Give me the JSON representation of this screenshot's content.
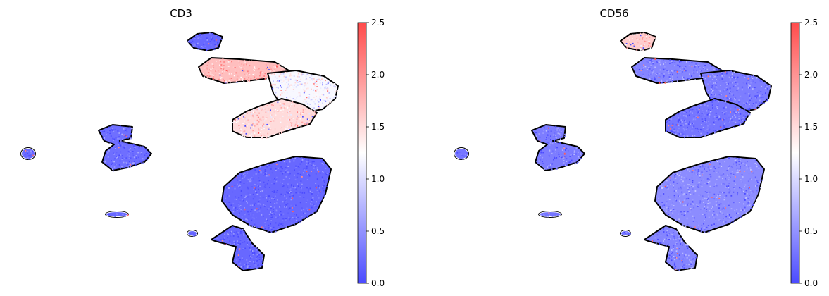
{
  "colormap": {
    "name": "bwr",
    "low": "#4b4bff",
    "mid": "#ffffff",
    "high": "#ff4b4b",
    "outline": "#000000"
  },
  "chart_data": [
    {
      "type": "scatter",
      "title": "CD3",
      "xlabel": "",
      "ylabel": "",
      "grid": false,
      "colorbar": {
        "vmin": 0.0,
        "vmax": 2.5,
        "ticks": [
          "0.0",
          "0.5",
          "1.0",
          "1.5",
          "2.0",
          "2.5"
        ]
      },
      "clusters": [
        {
          "shape": "small blob, far left",
          "value": 0.2
        },
        {
          "shape": "middle-left cluster",
          "value": 0.25
        },
        {
          "shape": "thin strip below middle-left cluster",
          "value": 0.2
        },
        {
          "shape": "top-center small cluster",
          "value": 0.2
        },
        {
          "shape": "arc top-center (high)",
          "value": 1.7
        },
        {
          "shape": "arc right lobe",
          "value": 1.2
        },
        {
          "shape": "lower arc lobe",
          "value": 1.5
        },
        {
          "shape": "large lower-right cluster",
          "value": 0.2
        },
        {
          "shape": "bottom tail",
          "value": 0.2
        },
        {
          "shape": "tiny pair",
          "value": 0.2
        }
      ]
    },
    {
      "type": "scatter",
      "title": "CD56",
      "xlabel": "",
      "ylabel": "",
      "grid": false,
      "colorbar": {
        "vmin": 0.0,
        "vmax": 2.5,
        "ticks": [
          "0.0",
          "0.5",
          "1.0",
          "1.5",
          "2.0",
          "2.5"
        ]
      },
      "clusters": [
        {
          "shape": "small blob, far left",
          "value": 0.3
        },
        {
          "shape": "middle-left cluster",
          "value": 0.35
        },
        {
          "shape": "thin strip below middle-left cluster",
          "value": 0.3
        },
        {
          "shape": "top-center small cluster",
          "value": 1.6
        },
        {
          "shape": "arc top-center",
          "value": 0.4
        },
        {
          "shape": "arc right lobe",
          "value": 0.35
        },
        {
          "shape": "lower arc lobe",
          "value": 0.3
        },
        {
          "shape": "large lower-right cluster",
          "value": 0.45
        },
        {
          "shape": "bottom tail",
          "value": 0.4
        },
        {
          "shape": "tiny pair",
          "value": 0.3
        }
      ]
    }
  ]
}
